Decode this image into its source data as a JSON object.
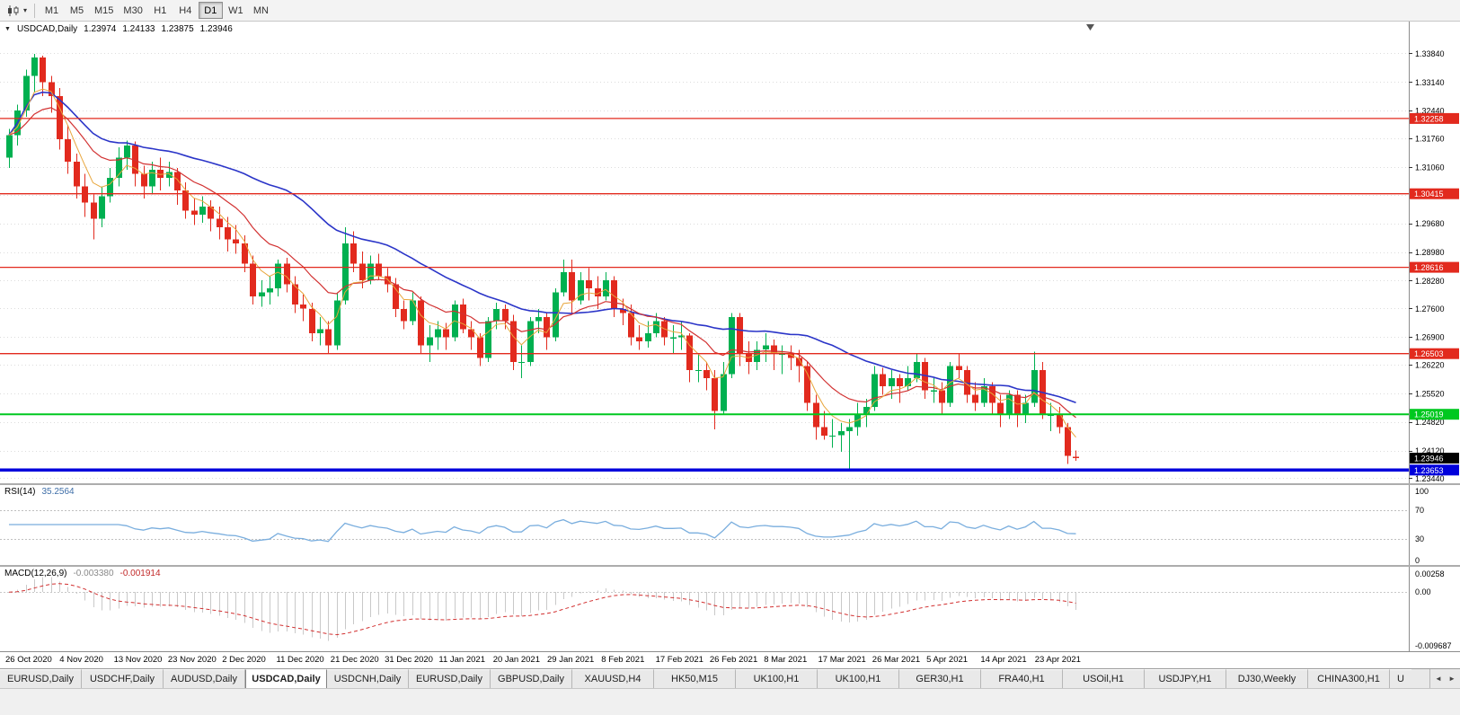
{
  "toolbar": {
    "dropdown_caret": "▾",
    "timeframes": [
      "M1",
      "M5",
      "M15",
      "M30",
      "H1",
      "H4",
      "D1",
      "W1",
      "MN"
    ],
    "active_timeframe": "D1"
  },
  "chart": {
    "collapse_icon": "▼",
    "title": "USDCAD,Daily",
    "open": "1.23974",
    "high": "1.24133",
    "low": "1.23875",
    "close": "1.23946",
    "price_axis_labels": [
      "1.33840",
      "1.33140",
      "1.32440",
      "1.31760",
      "1.31060",
      "1.29680",
      "1.28980",
      "1.28280",
      "1.27600",
      "1.26900",
      "1.26220",
      "1.25520",
      "1.24820",
      "1.24120",
      "1.23440"
    ],
    "hlines": [
      {
        "price": 1.32258,
        "label": "1.32258",
        "color": "#e22a1e",
        "width": 1.3,
        "role": "resistance"
      },
      {
        "price": 1.30415,
        "label": "1.30415",
        "color": "#e22a1e",
        "width": 1.3,
        "role": "resistance"
      },
      {
        "price": 1.28616,
        "label": "1.28616",
        "color": "#e22a1e",
        "width": 1.3,
        "role": "resistance"
      },
      {
        "price": 1.26503,
        "label": "1.26503",
        "color": "#e22a1e",
        "width": 1.3,
        "role": "resistance"
      },
      {
        "price": 1.25019,
        "label": "1.25019",
        "color": "#00c820",
        "width": 2,
        "role": "support"
      },
      {
        "price": 1.23653,
        "label": "1.23653",
        "color": "#0000dc",
        "width": 3.5,
        "role": "support"
      }
    ],
    "current_price": {
      "price": 1.23946,
      "label": "1.23946",
      "bg": "#000000"
    }
  },
  "rsi": {
    "name": "RSI(14)",
    "value": "35.2564",
    "axis_labels": [
      "100",
      "70",
      "30",
      "0"
    ],
    "levels": [
      70,
      30
    ],
    "line_color": "#7aaede"
  },
  "macd": {
    "name": "MACD(12,26,9)",
    "main_value": "-0.003380",
    "signal_value": "-0.001914",
    "axis_top": "0.00258",
    "axis_zero": "0.00",
    "axis_bottom": "-0.009687",
    "hist_color": "#c9c9c9",
    "signal_color": "#d23030"
  },
  "date_axis": [
    "26 Oct 2020",
    "4 Nov 2020",
    "13 Nov 2020",
    "23 Nov 2020",
    "2 Dec 2020",
    "11 Dec 2020",
    "21 Dec 2020",
    "31 Dec 2020",
    "11 Jan 2021",
    "20 Jan 2021",
    "29 Jan 2021",
    "8 Feb 2021",
    "17 Feb 2021",
    "26 Feb 2021",
    "8 Mar 2021",
    "17 Mar 2021",
    "26 Mar 2021",
    "5 Apr 2021",
    "14 Apr 2021",
    "23 Apr 2021"
  ],
  "tabs": {
    "items": [
      {
        "label": "EURUSD,Daily",
        "active": false
      },
      {
        "label": "USDCHF,Daily",
        "active": false
      },
      {
        "label": "AUDUSD,Daily",
        "active": false
      },
      {
        "label": "USDCAD,Daily",
        "active": true
      },
      {
        "label": "USDCNH,Daily",
        "active": false
      },
      {
        "label": "EURUSD,Daily",
        "active": false
      },
      {
        "label": "GBPUSD,Daily",
        "active": false
      },
      {
        "label": "XAUUSD,H4",
        "active": false
      },
      {
        "label": "HK50,M15",
        "active": false
      },
      {
        "label": "UK100,H1",
        "active": false
      },
      {
        "label": "UK100,H1",
        "active": false
      },
      {
        "label": "GER30,H1",
        "active": false
      },
      {
        "label": "FRA40,H1",
        "active": false
      },
      {
        "label": "USOil,H1",
        "active": false
      },
      {
        "label": "USDJPY,H1",
        "active": false
      },
      {
        "label": "DJ30,Weekly",
        "active": false
      },
      {
        "label": "CHINA300,H1",
        "active": false
      },
      {
        "label": "U",
        "active": false,
        "partial": true
      }
    ],
    "scroll_left_icon": "◄",
    "scroll_right_icon": "►"
  },
  "colors": {
    "up": "#00b050",
    "down": "#e22a1e",
    "ma_slow": "#2b35c8",
    "ma_mid": "#d23232",
    "ma_fast": "#e8a63c",
    "grid": "#dcdcdc",
    "axis_border": "#8c8c8c"
  },
  "chart_data": {
    "type": "candlestick",
    "symbol": "USDCAD",
    "period": "Daily",
    "ylim": [
      1.2333,
      1.3463
    ],
    "candles": [
      [
        1.313,
        1.32,
        1.3105,
        1.3185
      ],
      [
        1.3185,
        1.326,
        1.316,
        1.3245
      ],
      [
        1.3245,
        1.3345,
        1.323,
        1.333
      ],
      [
        1.333,
        1.3384,
        1.329,
        1.3375
      ],
      [
        1.3375,
        1.338,
        1.328,
        1.3315
      ],
      [
        1.3315,
        1.333,
        1.324,
        1.328
      ],
      [
        1.328,
        1.33,
        1.315,
        1.3175
      ],
      [
        1.3175,
        1.321,
        1.309,
        1.312
      ],
      [
        1.312,
        1.314,
        1.303,
        1.306
      ],
      [
        1.306,
        1.309,
        1.2985,
        1.302
      ],
      [
        1.302,
        1.304,
        1.293,
        1.298
      ],
      [
        1.298,
        1.306,
        1.296,
        1.3035
      ],
      [
        1.3035,
        1.3105,
        1.302,
        1.308
      ],
      [
        1.308,
        1.3155,
        1.306,
        1.313
      ],
      [
        1.313,
        1.3172,
        1.31,
        1.316
      ],
      [
        1.316,
        1.317,
        1.306,
        1.309
      ],
      [
        1.309,
        1.311,
        1.303,
        1.306
      ],
      [
        1.306,
        1.312,
        1.304,
        1.31
      ],
      [
        1.31,
        1.313,
        1.305,
        1.308
      ],
      [
        1.308,
        1.312,
        1.306,
        1.3095
      ],
      [
        1.3095,
        1.3105,
        1.3015,
        1.305
      ],
      [
        1.305,
        1.307,
        1.298,
        1.3
      ],
      [
        1.3,
        1.303,
        1.2965,
        1.299
      ],
      [
        1.299,
        1.3035,
        1.297,
        1.301
      ],
      [
        1.301,
        1.3025,
        1.295,
        1.298
      ],
      [
        1.298,
        1.301,
        1.293,
        1.296
      ],
      [
        1.296,
        1.2985,
        1.29,
        1.293
      ],
      [
        1.293,
        1.2965,
        1.2895,
        1.292
      ],
      [
        1.292,
        1.294,
        1.285,
        1.287
      ],
      [
        1.287,
        1.289,
        1.277,
        1.279
      ],
      [
        1.279,
        1.283,
        1.2765,
        1.28
      ],
      [
        1.28,
        1.284,
        1.277,
        1.281
      ],
      [
        1.281,
        1.288,
        1.279,
        1.287
      ],
      [
        1.287,
        1.2885,
        1.28,
        1.282
      ],
      [
        1.282,
        1.284,
        1.275,
        1.277
      ],
      [
        1.277,
        1.2795,
        1.273,
        1.276
      ],
      [
        1.276,
        1.2775,
        1.268,
        1.27
      ],
      [
        1.27,
        1.274,
        1.267,
        1.271
      ],
      [
        1.271,
        1.273,
        1.265,
        1.267
      ],
      [
        1.267,
        1.28,
        1.266,
        1.278
      ],
      [
        1.278,
        1.296,
        1.277,
        1.292
      ],
      [
        1.292,
        1.295,
        1.285,
        1.287
      ],
      [
        1.287,
        1.29,
        1.281,
        1.283
      ],
      [
        1.283,
        1.289,
        1.282,
        1.287
      ],
      [
        1.287,
        1.2895,
        1.283,
        1.284
      ],
      [
        1.284,
        1.286,
        1.28,
        1.282
      ],
      [
        1.282,
        1.2835,
        1.274,
        1.276
      ],
      [
        1.276,
        1.278,
        1.271,
        1.273
      ],
      [
        1.273,
        1.28,
        1.272,
        1.278
      ],
      [
        1.278,
        1.279,
        1.265,
        1.267
      ],
      [
        1.267,
        1.272,
        1.263,
        1.269
      ],
      [
        1.269,
        1.273,
        1.266,
        1.271
      ],
      [
        1.271,
        1.2725,
        1.266,
        1.269
      ],
      [
        1.269,
        1.278,
        1.268,
        1.277
      ],
      [
        1.277,
        1.2785,
        1.27,
        1.271
      ],
      [
        1.271,
        1.273,
        1.266,
        1.269
      ],
      [
        1.269,
        1.27,
        1.262,
        1.264
      ],
      [
        1.264,
        1.274,
        1.263,
        1.273
      ],
      [
        1.273,
        1.2775,
        1.271,
        1.276
      ],
      [
        1.276,
        1.277,
        1.271,
        1.273
      ],
      [
        1.273,
        1.2745,
        1.261,
        1.263
      ],
      [
        1.263,
        1.267,
        1.259,
        1.263
      ],
      [
        1.263,
        1.274,
        1.262,
        1.273
      ],
      [
        1.273,
        1.276,
        1.27,
        1.274
      ],
      [
        1.274,
        1.275,
        1.266,
        1.269
      ],
      [
        1.269,
        1.281,
        1.268,
        1.28
      ],
      [
        1.28,
        1.288,
        1.279,
        1.285
      ],
      [
        1.285,
        1.288,
        1.275,
        1.278
      ],
      [
        1.278,
        1.285,
        1.277,
        1.283
      ],
      [
        1.283,
        1.286,
        1.278,
        1.281
      ],
      [
        1.281,
        1.284,
        1.276,
        1.279
      ],
      [
        1.279,
        1.285,
        1.278,
        1.283
      ],
      [
        1.283,
        1.284,
        1.274,
        1.276
      ],
      [
        1.276,
        1.2785,
        1.272,
        1.275
      ],
      [
        1.275,
        1.277,
        1.267,
        1.269
      ],
      [
        1.269,
        1.272,
        1.266,
        1.268
      ],
      [
        1.268,
        1.273,
        1.2665,
        1.27
      ],
      [
        1.27,
        1.275,
        1.269,
        1.273
      ],
      [
        1.273,
        1.274,
        1.267,
        1.269
      ],
      [
        1.269,
        1.272,
        1.265,
        1.269
      ],
      [
        1.269,
        1.273,
        1.266,
        1.2695
      ],
      [
        1.2695,
        1.27,
        1.258,
        1.261
      ],
      [
        1.261,
        1.265,
        1.258,
        1.261
      ],
      [
        1.261,
        1.263,
        1.256,
        1.259
      ],
      [
        1.259,
        1.261,
        1.2465,
        1.251
      ],
      [
        1.251,
        1.263,
        1.25,
        1.26
      ],
      [
        1.26,
        1.275,
        1.259,
        1.274
      ],
      [
        1.274,
        1.275,
        1.262,
        1.265
      ],
      [
        1.265,
        1.268,
        1.26,
        1.263
      ],
      [
        1.263,
        1.268,
        1.261,
        1.266
      ],
      [
        1.266,
        1.27,
        1.263,
        1.267
      ],
      [
        1.267,
        1.2685,
        1.261,
        1.265
      ],
      [
        1.265,
        1.267,
        1.26,
        1.265
      ],
      [
        1.265,
        1.267,
        1.261,
        1.264
      ],
      [
        1.264,
        1.266,
        1.258,
        1.262
      ],
      [
        1.262,
        1.263,
        1.251,
        1.253
      ],
      [
        1.253,
        1.255,
        1.244,
        1.247
      ],
      [
        1.247,
        1.251,
        1.244,
        1.245
      ],
      [
        1.245,
        1.249,
        1.242,
        1.245
      ],
      [
        1.245,
        1.248,
        1.241,
        1.246
      ],
      [
        1.246,
        1.249,
        1.2365,
        1.247
      ],
      [
        1.247,
        1.253,
        1.245,
        1.25
      ],
      [
        1.25,
        1.254,
        1.247,
        1.252
      ],
      [
        1.252,
        1.262,
        1.251,
        1.26
      ],
      [
        1.26,
        1.2615,
        1.255,
        1.257
      ],
      [
        1.257,
        1.261,
        1.254,
        1.259
      ],
      [
        1.259,
        1.26,
        1.253,
        1.257
      ],
      [
        1.257,
        1.262,
        1.256,
        1.259
      ],
      [
        1.259,
        1.265,
        1.258,
        1.263
      ],
      [
        1.263,
        1.264,
        1.254,
        1.256
      ],
      [
        1.256,
        1.259,
        1.253,
        1.256
      ],
      [
        1.256,
        1.258,
        1.25,
        1.253
      ],
      [
        1.253,
        1.263,
        1.252,
        1.262
      ],
      [
        1.262,
        1.265,
        1.259,
        1.261
      ],
      [
        1.261,
        1.262,
        1.253,
        1.255
      ],
      [
        1.255,
        1.258,
        1.251,
        1.253
      ],
      [
        1.253,
        1.259,
        1.252,
        1.257
      ],
      [
        1.257,
        1.258,
        1.25,
        1.253
      ],
      [
        1.253,
        1.255,
        1.247,
        1.25
      ],
      [
        1.25,
        1.256,
        1.249,
        1.255
      ],
      [
        1.255,
        1.256,
        1.247,
        1.25
      ],
      [
        1.25,
        1.255,
        1.248,
        1.253
      ],
      [
        1.253,
        1.2655,
        1.252,
        1.261
      ],
      [
        1.261,
        1.263,
        1.249,
        1.25
      ],
      [
        1.25,
        1.253,
        1.246,
        1.25
      ],
      [
        1.25,
        1.252,
        1.2455,
        1.247
      ],
      [
        1.247,
        1.248,
        1.238,
        1.24
      ],
      [
        1.23974,
        1.24133,
        1.23875,
        1.23946
      ]
    ]
  }
}
